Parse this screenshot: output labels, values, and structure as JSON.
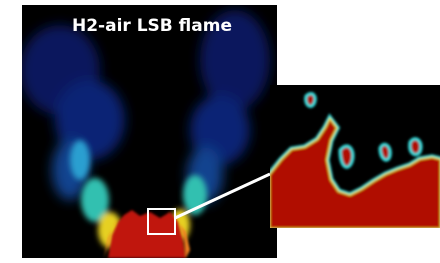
{
  "title": "H2-air LSB flame"
}
